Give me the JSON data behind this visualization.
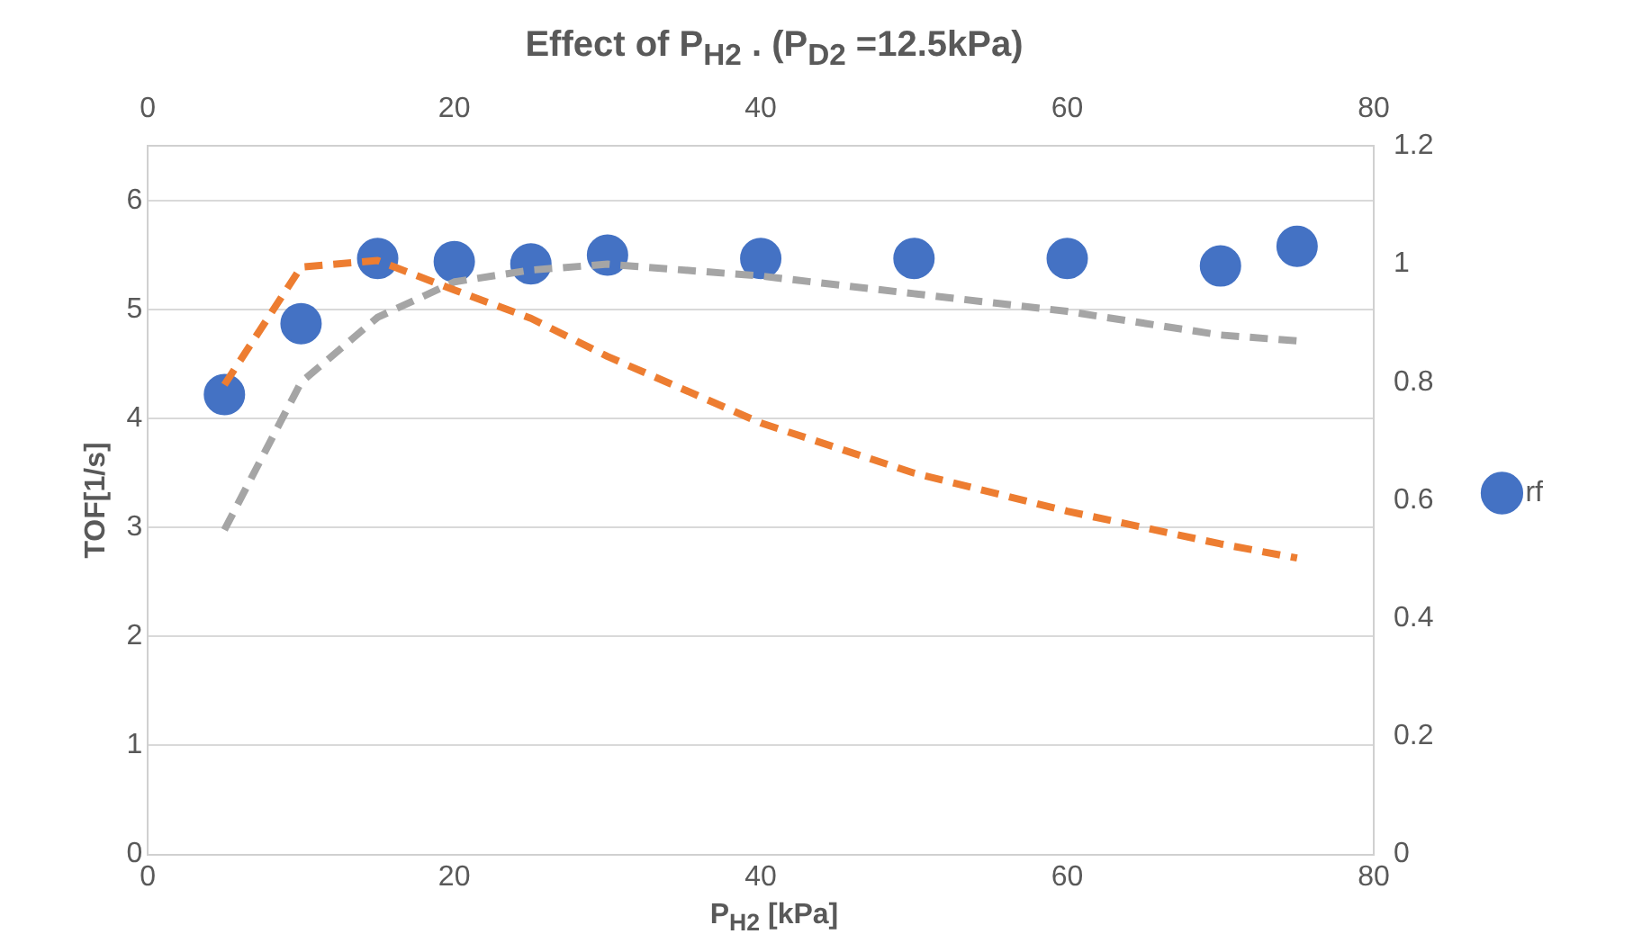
{
  "chart_data": {
    "type": "scatter",
    "title": "Effect of P$_{H2}$ . (P$_{D2}$ =12.5kPa)",
    "xlabel": "P$_{H2}$ [kPa]",
    "ylabel": "TOF[1/s]",
    "xlim": [
      0,
      80
    ],
    "xticks": [
      0,
      20,
      40,
      60,
      80
    ],
    "x2lim": [
      0,
      80
    ],
    "x2ticks": [
      0,
      20,
      40,
      60,
      80
    ],
    "ylim": [
      0,
      6.5
    ],
    "yticks": [
      0,
      1,
      2,
      3,
      4,
      5,
      6
    ],
    "y2lim": [
      0,
      1.2
    ],
    "y2ticks": [
      0,
      0.2,
      0.4,
      0.6,
      0.8,
      1,
      1.2
    ],
    "grid": "y",
    "legend": "right",
    "marker": "circle",
    "series": [
      {
        "name": "rf",
        "color": "#4472c4",
        "x": [
          5,
          10,
          15,
          20,
          25,
          30,
          40,
          50,
          60,
          70,
          75
        ],
        "values": [
          4.22,
          4.87,
          5.47,
          5.44,
          5.42,
          5.5,
          5.47,
          5.47,
          5.47,
          5.4,
          5.58
        ]
      },
      {
        "type": "line",
        "color": "#ed7d31",
        "line_style": "dashed",
        "marker": "none",
        "x": [
          5,
          10,
          15,
          20,
          25,
          30,
          40,
          50,
          60,
          70,
          75
        ],
        "values": [
          4.31,
          5.39,
          5.45,
          5.18,
          4.92,
          4.57,
          3.96,
          3.5,
          3.15,
          2.85,
          2.72
        ]
      },
      {
        "type": "line",
        "axis": "y2",
        "color": "#a5a5a5",
        "line_style": "dashed",
        "marker": "none",
        "x": [
          5,
          10,
          15,
          20,
          25,
          30,
          40,
          50,
          60,
          70,
          75
        ],
        "values": [
          0.55,
          0.8,
          0.91,
          0.97,
          0.99,
          1.0,
          0.98,
          0.95,
          0.92,
          0.88,
          0.87
        ]
      }
    ]
  }
}
